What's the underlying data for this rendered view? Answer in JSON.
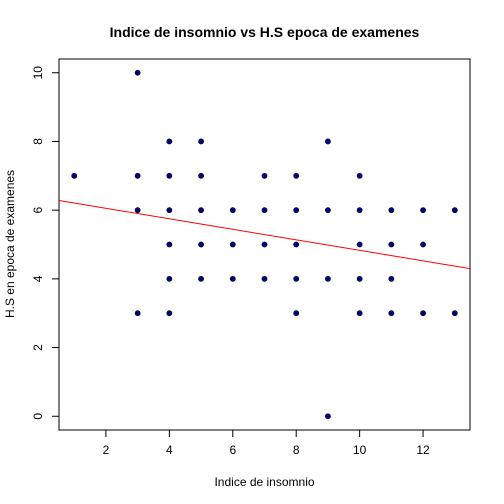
{
  "chart_data": {
    "type": "scatter",
    "title": "Indice de insomnio vs H.S epoca de examenes",
    "xlabel": "Indice de insomnio",
    "ylabel": "H.S en epoca de examenes",
    "xlim": [
      0.52,
      13.48
    ],
    "ylim": [
      -0.4,
      10.4
    ],
    "xticks": [
      2,
      4,
      6,
      8,
      10,
      12
    ],
    "yticks": [
      0,
      2,
      4,
      6,
      8,
      10
    ],
    "grid": false,
    "point_color": "#00008B",
    "line_color": "#FF0000",
    "points": [
      {
        "x": 1,
        "y": 7
      },
      {
        "x": 3,
        "y": 10
      },
      {
        "x": 3,
        "y": 7
      },
      {
        "x": 3,
        "y": 6
      },
      {
        "x": 3,
        "y": 3
      },
      {
        "x": 4,
        "y": 8
      },
      {
        "x": 4,
        "y": 7
      },
      {
        "x": 4,
        "y": 6
      },
      {
        "x": 4,
        "y": 5
      },
      {
        "x": 4,
        "y": 4
      },
      {
        "x": 4,
        "y": 3
      },
      {
        "x": 5,
        "y": 8
      },
      {
        "x": 5,
        "y": 7
      },
      {
        "x": 5,
        "y": 6
      },
      {
        "x": 5,
        "y": 5
      },
      {
        "x": 5,
        "y": 4
      },
      {
        "x": 6,
        "y": 6
      },
      {
        "x": 6,
        "y": 5
      },
      {
        "x": 6,
        "y": 4
      },
      {
        "x": 7,
        "y": 7
      },
      {
        "x": 7,
        "y": 6
      },
      {
        "x": 7,
        "y": 5
      },
      {
        "x": 7,
        "y": 4
      },
      {
        "x": 8,
        "y": 7
      },
      {
        "x": 8,
        "y": 6
      },
      {
        "x": 8,
        "y": 5
      },
      {
        "x": 8,
        "y": 4
      },
      {
        "x": 8,
        "y": 3
      },
      {
        "x": 9,
        "y": 8
      },
      {
        "x": 9,
        "y": 6
      },
      {
        "x": 9,
        "y": 4
      },
      {
        "x": 9,
        "y": 0
      },
      {
        "x": 10,
        "y": 7
      },
      {
        "x": 10,
        "y": 6
      },
      {
        "x": 10,
        "y": 5
      },
      {
        "x": 10,
        "y": 4
      },
      {
        "x": 10,
        "y": 3
      },
      {
        "x": 11,
        "y": 6
      },
      {
        "x": 11,
        "y": 5
      },
      {
        "x": 11,
        "y": 4
      },
      {
        "x": 11,
        "y": 3
      },
      {
        "x": 12,
        "y": 6
      },
      {
        "x": 12,
        "y": 5
      },
      {
        "x": 12,
        "y": 3
      },
      {
        "x": 13,
        "y": 6
      },
      {
        "x": 13,
        "y": 3
      }
    ],
    "regression": {
      "intercept": 6.36,
      "slope": -0.153
    }
  }
}
